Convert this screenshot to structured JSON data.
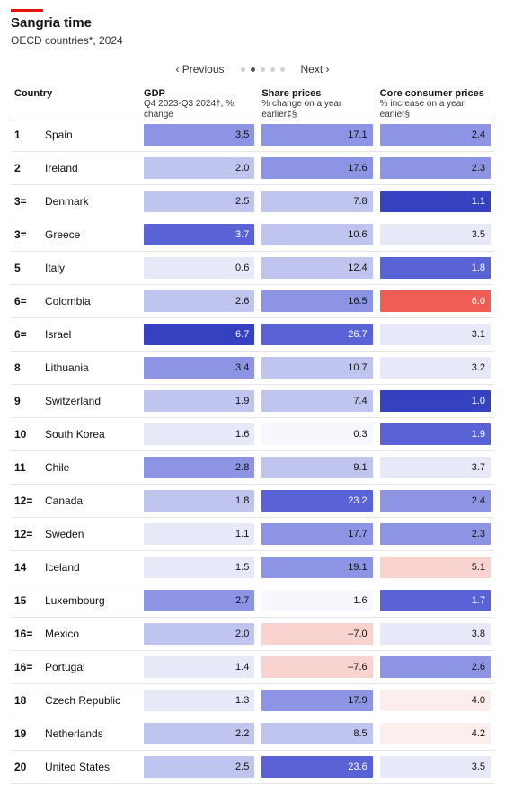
{
  "title": "Sangria time",
  "subtitle": "OECD countries*, 2024",
  "pager": {
    "prev": "‹ Previous",
    "next": "Next ›",
    "dots": 5,
    "active": 1
  },
  "columns": {
    "country": {
      "label": "Country"
    },
    "gdp": {
      "label": "GDP",
      "sub": "Q4 2023-Q3 2024†, % change"
    },
    "shares": {
      "label": "Share prices",
      "sub": "% change on a year earlier‡§"
    },
    "core": {
      "label": "Core consumer prices",
      "sub": "% increase on a year earlier§"
    }
  },
  "palette": {
    "blue_dark": "#3641c2",
    "blue_strong": "#5a63d6",
    "blue_mid": "#8d94e3",
    "blue_light": "#c0c5ef",
    "blue_vlight": "#e7e9f8",
    "white": "#f7f8fd",
    "red_strong": "#ef5e55",
    "red_light": "#f9d3d0",
    "red_vlight": "#fceeed",
    "text_dark": "#121212",
    "text_light": "#ffffff"
  },
  "rows": [
    {
      "rank": "1",
      "country": "Spain",
      "gdp": {
        "v": "3.5",
        "c": "blue_mid",
        "t": "dark"
      },
      "shares": {
        "v": "17.1",
        "c": "blue_mid",
        "t": "dark"
      },
      "core": {
        "v": "2.4",
        "c": "blue_mid",
        "t": "dark"
      }
    },
    {
      "rank": "2",
      "country": "Ireland",
      "gdp": {
        "v": "2.0",
        "c": "blue_light",
        "t": "dark"
      },
      "shares": {
        "v": "17.6",
        "c": "blue_mid",
        "t": "dark"
      },
      "core": {
        "v": "2.3",
        "c": "blue_mid",
        "t": "dark"
      }
    },
    {
      "rank": "3=",
      "country": "Denmark",
      "gdp": {
        "v": "2.5",
        "c": "blue_light",
        "t": "dark"
      },
      "shares": {
        "v": "7.8",
        "c": "blue_light",
        "t": "dark"
      },
      "core": {
        "v": "1.1",
        "c": "blue_dark",
        "t": "light"
      }
    },
    {
      "rank": "3=",
      "country": "Greece",
      "gdp": {
        "v": "3.7",
        "c": "blue_strong",
        "t": "light"
      },
      "shares": {
        "v": "10.6",
        "c": "blue_light",
        "t": "dark"
      },
      "core": {
        "v": "3.5",
        "c": "blue_vlight",
        "t": "dark"
      }
    },
    {
      "rank": "5",
      "country": "Italy",
      "gdp": {
        "v": "0.6",
        "c": "blue_vlight",
        "t": "dark"
      },
      "shares": {
        "v": "12.4",
        "c": "blue_light",
        "t": "dark"
      },
      "core": {
        "v": "1.8",
        "c": "blue_strong",
        "t": "light"
      }
    },
    {
      "rank": "6=",
      "country": "Colombia",
      "gdp": {
        "v": "2.6",
        "c": "blue_light",
        "t": "dark"
      },
      "shares": {
        "v": "16.5",
        "c": "blue_mid",
        "t": "dark"
      },
      "core": {
        "v": "6.0",
        "c": "red_strong",
        "t": "light"
      }
    },
    {
      "rank": "6=",
      "country": "Israel",
      "gdp": {
        "v": "6.7",
        "c": "blue_dark",
        "t": "light"
      },
      "shares": {
        "v": "26.7",
        "c": "blue_strong",
        "t": "light"
      },
      "core": {
        "v": "3.1",
        "c": "blue_vlight",
        "t": "dark"
      }
    },
    {
      "rank": "8",
      "country": "Lithuania",
      "gdp": {
        "v": "3.4",
        "c": "blue_mid",
        "t": "dark"
      },
      "shares": {
        "v": "10.7",
        "c": "blue_light",
        "t": "dark"
      },
      "core": {
        "v": "3.2",
        "c": "blue_vlight",
        "t": "dark"
      }
    },
    {
      "rank": "9",
      "country": "Switzerland",
      "gdp": {
        "v": "1.9",
        "c": "blue_light",
        "t": "dark"
      },
      "shares": {
        "v": "7.4",
        "c": "blue_light",
        "t": "dark"
      },
      "core": {
        "v": "1.0",
        "c": "blue_dark",
        "t": "light"
      }
    },
    {
      "rank": "10",
      "country": "South Korea",
      "gdp": {
        "v": "1.6",
        "c": "blue_vlight",
        "t": "dark"
      },
      "shares": {
        "v": "0.3",
        "c": "white",
        "t": "dark"
      },
      "core": {
        "v": "1.9",
        "c": "blue_strong",
        "t": "light"
      }
    },
    {
      "rank": "11",
      "country": "Chile",
      "gdp": {
        "v": "2.8",
        "c": "blue_mid",
        "t": "dark"
      },
      "shares": {
        "v": "9.1",
        "c": "blue_light",
        "t": "dark"
      },
      "core": {
        "v": "3.7",
        "c": "blue_vlight",
        "t": "dark"
      }
    },
    {
      "rank": "12=",
      "country": "Canada",
      "gdp": {
        "v": "1.8",
        "c": "blue_light",
        "t": "dark"
      },
      "shares": {
        "v": "23.2",
        "c": "blue_strong",
        "t": "light"
      },
      "core": {
        "v": "2.4",
        "c": "blue_mid",
        "t": "dark"
      }
    },
    {
      "rank": "12=",
      "country": "Sweden",
      "gdp": {
        "v": "1.1",
        "c": "blue_vlight",
        "t": "dark"
      },
      "shares": {
        "v": "17.7",
        "c": "blue_mid",
        "t": "dark"
      },
      "core": {
        "v": "2.3",
        "c": "blue_mid",
        "t": "dark"
      }
    },
    {
      "rank": "14",
      "country": "Iceland",
      "gdp": {
        "v": "1.5",
        "c": "blue_vlight",
        "t": "dark"
      },
      "shares": {
        "v": "19.1",
        "c": "blue_mid",
        "t": "dark"
      },
      "core": {
        "v": "5.1",
        "c": "red_light",
        "t": "dark"
      }
    },
    {
      "rank": "15",
      "country": "Luxembourg",
      "gdp": {
        "v": "2.7",
        "c": "blue_mid",
        "t": "dark"
      },
      "shares": {
        "v": "1.6",
        "c": "white",
        "t": "dark"
      },
      "core": {
        "v": "1.7",
        "c": "blue_strong",
        "t": "light"
      }
    },
    {
      "rank": "16=",
      "country": "Mexico",
      "gdp": {
        "v": "2.0",
        "c": "blue_light",
        "t": "dark"
      },
      "shares": {
        "v": "–7.0",
        "c": "red_light",
        "t": "dark"
      },
      "core": {
        "v": "3.8",
        "c": "blue_vlight",
        "t": "dark"
      }
    },
    {
      "rank": "16=",
      "country": "Portugal",
      "gdp": {
        "v": "1.4",
        "c": "blue_vlight",
        "t": "dark"
      },
      "shares": {
        "v": "–7.6",
        "c": "red_light",
        "t": "dark"
      },
      "core": {
        "v": "2.6",
        "c": "blue_mid",
        "t": "dark"
      }
    },
    {
      "rank": "18",
      "country": "Czech Republic",
      "gdp": {
        "v": "1.3",
        "c": "blue_vlight",
        "t": "dark"
      },
      "shares": {
        "v": "17.9",
        "c": "blue_mid",
        "t": "dark"
      },
      "core": {
        "v": "4.0",
        "c": "red_vlight",
        "t": "dark"
      }
    },
    {
      "rank": "19",
      "country": "Netherlands",
      "gdp": {
        "v": "2.2",
        "c": "blue_light",
        "t": "dark"
      },
      "shares": {
        "v": "8.5",
        "c": "blue_light",
        "t": "dark"
      },
      "core": {
        "v": "4.2",
        "c": "red_vlight",
        "t": "dark"
      }
    },
    {
      "rank": "20",
      "country": "United States",
      "gdp": {
        "v": "2.5",
        "c": "blue_light",
        "t": "dark"
      },
      "shares": {
        "v": "23.6",
        "c": "blue_strong",
        "t": "light"
      },
      "core": {
        "v": "3.5",
        "c": "blue_vlight",
        "t": "dark"
      }
    }
  ]
}
